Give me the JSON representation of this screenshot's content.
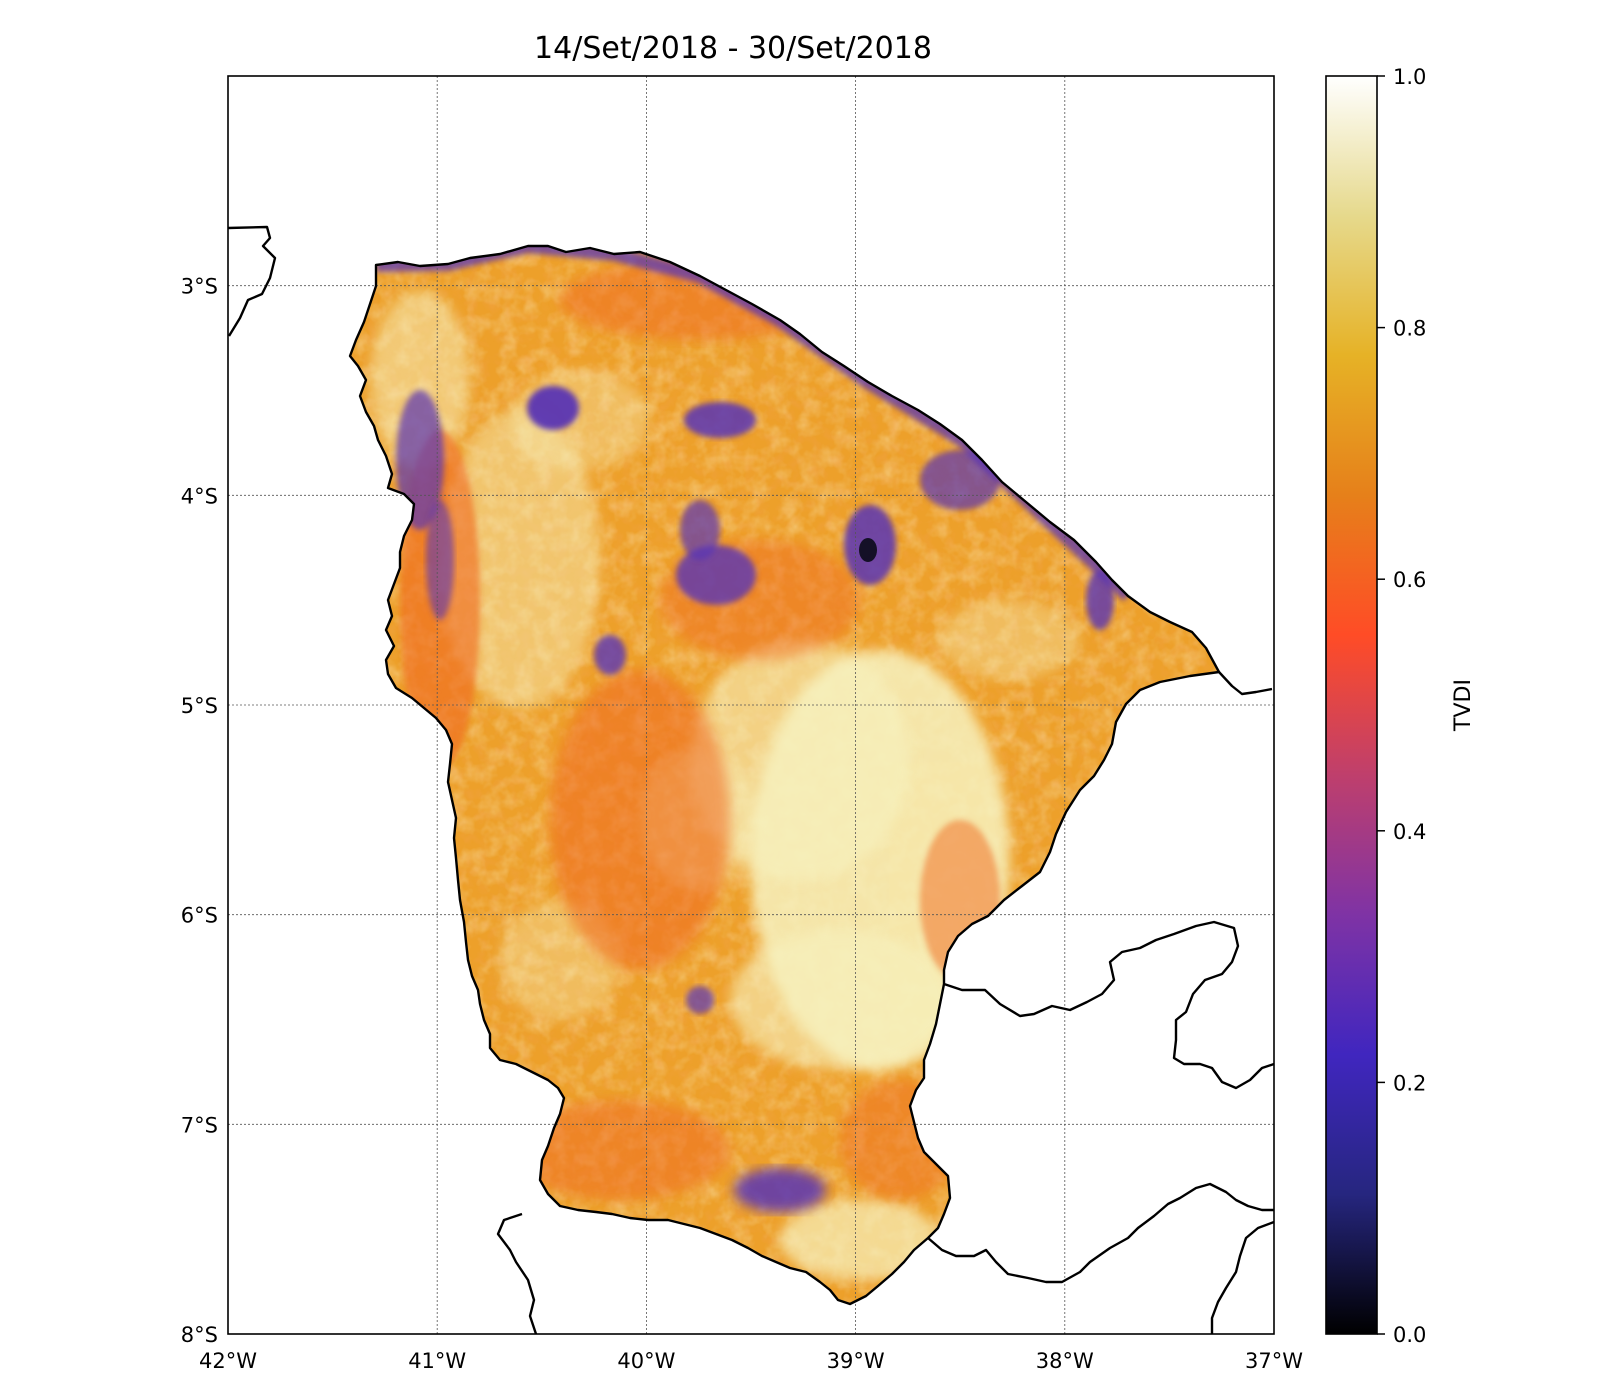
{
  "title": "14/Set/2018 - 30/Set/2018",
  "map": {
    "region": "Ceará",
    "lon_range": [
      -42,
      -37
    ],
    "lat_range": [
      -8,
      -2
    ],
    "x_ticks": [
      "42°W",
      "41°W",
      "40°W",
      "39°W",
      "38°W",
      "37°W"
    ],
    "y_ticks": [
      "3°S",
      "4°S",
      "5°S",
      "6°S",
      "7°S",
      "8°S"
    ],
    "grid": true
  },
  "colorbar": {
    "label": "TVDI",
    "ticks": [
      "0.0",
      "0.2",
      "0.4",
      "0.6",
      "0.8",
      "1.0"
    ],
    "range": [
      0,
      1
    ],
    "colormap": "CMRmap",
    "stops": [
      "#000000",
      "#26267f",
      "#4026bf",
      "#7f33a5",
      "#bf3f6c",
      "#ff4c26",
      "#e6801a",
      "#e6b226",
      "#e6d98c",
      "#ffffff"
    ]
  },
  "fill": {
    "base_color": "#eda02a",
    "low_color": "#5a35b4",
    "high_color": "#f7f2bf",
    "mid_color": "#f06a22"
  }
}
